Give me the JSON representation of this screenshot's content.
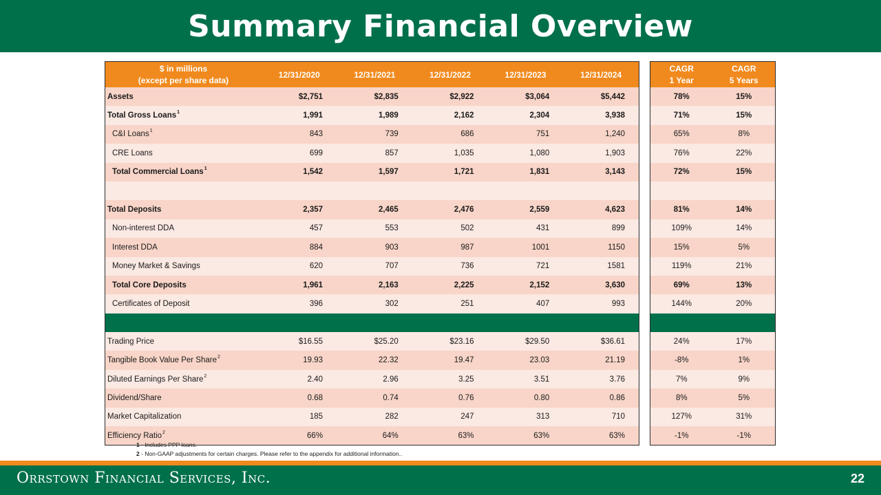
{
  "title": "Summary Financial Overview",
  "header": {
    "label_line1": "$ in millions",
    "label_line2": "(except per share data)",
    "years": [
      "12/31/2020",
      "12/31/2021",
      "12/31/2022",
      "12/31/2023",
      "12/31/2024"
    ],
    "cagr1_line1": "CAGR",
    "cagr1_line2": "1 Year",
    "cagr5_line1": "CAGR",
    "cagr5_line2": "5 Years"
  },
  "rows": [
    {
      "label": "Assets",
      "sup": "",
      "values": [
        "$2,751",
        "$2,835",
        "$2,922",
        "$3,064",
        "$5,442"
      ],
      "cagr1": "78%",
      "cagr5": "15%"
    },
    {
      "label": "Total Gross Loans",
      "sup": "1",
      "values": [
        "1,991",
        "1,989",
        "2,162",
        "2,304",
        "3,938"
      ],
      "cagr1": "71%",
      "cagr5": "15%"
    },
    {
      "label": "C&I Loans",
      "sup": "1",
      "values": [
        "843",
        "739",
        "686",
        "751",
        "1,240"
      ],
      "cagr1": "65%",
      "cagr5": "8%"
    },
    {
      "label": "CRE Loans",
      "sup": "",
      "values": [
        "699",
        "857",
        "1,035",
        "1,080",
        "1,903"
      ],
      "cagr1": "76%",
      "cagr5": "22%"
    },
    {
      "label": "Total Commercial Loans",
      "sup": "1",
      "values": [
        "1,542",
        "1,597",
        "1,721",
        "1,831",
        "3,143"
      ],
      "cagr1": "72%",
      "cagr5": "15%"
    },
    {
      "label": "Total Deposits",
      "sup": "",
      "values": [
        "2,357",
        "2,465",
        "2,476",
        "2,559",
        "4,623"
      ],
      "cagr1": "81%",
      "cagr5": "14%"
    },
    {
      "label": "Non-interest DDA",
      "sup": "",
      "values": [
        "457",
        "553",
        "502",
        "431",
        "899"
      ],
      "cagr1": "109%",
      "cagr5": "14%"
    },
    {
      "label": "Interest DDA",
      "sup": "",
      "values": [
        "884",
        "903",
        "987",
        "1001",
        "1150"
      ],
      "cagr1": "15%",
      "cagr5": "5%"
    },
    {
      "label": "Money Market & Savings",
      "sup": "",
      "values": [
        "620",
        "707",
        "736",
        "721",
        "1581"
      ],
      "cagr1": "119%",
      "cagr5": "21%"
    },
    {
      "label": "Total Core Deposits",
      "sup": "",
      "values": [
        "1,961",
        "2,163",
        "2,225",
        "2,152",
        "3,630"
      ],
      "cagr1": "69%",
      "cagr5": "13%"
    },
    {
      "label": "Certificates of Deposit",
      "sup": "",
      "values": [
        "396",
        "302",
        "251",
        "407",
        "993"
      ],
      "cagr1": "144%",
      "cagr5": "20%"
    },
    {
      "label": "Trading Price",
      "sup": "",
      "values": [
        "$16.55",
        "$25.20",
        "$23.16",
        "$29.50",
        "$36.61"
      ],
      "cagr1": "24%",
      "cagr5": "17%"
    },
    {
      "label": "Tangible Book Value Per Share",
      "sup": "2",
      "values": [
        "19.93",
        "22.32",
        "19.47",
        "23.03",
        "21.19"
      ],
      "cagr1": "-8%",
      "cagr5": "1%"
    },
    {
      "label": "Diluted Earnings Per Share",
      "sup": "2",
      "values": [
        "2.40",
        "2.96",
        "3.25",
        "3.51",
        "3.76"
      ],
      "cagr1": "7%",
      "cagr5": "9%"
    },
    {
      "label": "Dividend/Share",
      "sup": "",
      "values": [
        "0.68",
        "0.74",
        "0.76",
        "0.80",
        "0.86"
      ],
      "cagr1": "8%",
      "cagr5": "5%"
    },
    {
      "label": "Market Capitalization",
      "sup": "",
      "values": [
        "185",
        "282",
        "247",
        "313",
        "710"
      ],
      "cagr1": "127%",
      "cagr5": "31%"
    },
    {
      "label": "Efficiency Ratio",
      "sup": "2",
      "values": [
        "66%",
        "64%",
        "63%",
        "63%",
        "63%"
      ],
      "cagr1": "-1%",
      "cagr5": "-1%"
    }
  ],
  "footnotes": [
    {
      "num": "1",
      "text": " - Includes PPP loans."
    },
    {
      "num": "2",
      "text": " - Non-GAAP adjustments for certain charges. Please refer to the appendix for additional information.."
    }
  ],
  "footer": {
    "company": "Orrstown Financial Services, Inc.",
    "page": "22"
  },
  "colors": {
    "green": "#00704a",
    "orange": "#f18a1e",
    "row_dark": "#f8d5c8",
    "row_light": "#fbe9e3"
  }
}
